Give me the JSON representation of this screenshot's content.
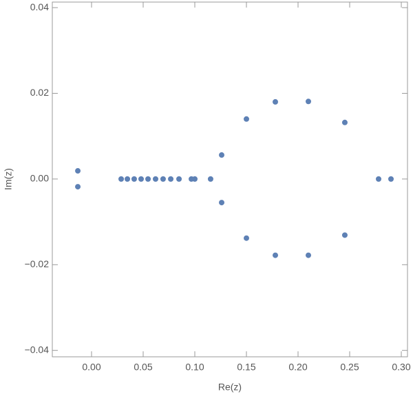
{
  "chart_data": {
    "type": "scatter",
    "x_label": "Re(z)",
    "y_label": "Im(z)",
    "color": "#5e81b5",
    "x": [
      -0.0133,
      -0.0133,
      0.0287,
      0.0347,
      0.0413,
      0.048,
      0.0547,
      0.062,
      0.0693,
      0.0767,
      0.0847,
      0.0967,
      0.1,
      0.1153,
      0.278,
      0.29,
      0.126,
      0.126,
      0.15,
      0.15,
      0.178,
      0.178,
      0.21,
      0.21,
      0.2453,
      0.2453
    ],
    "values": [
      0.0019,
      -0.0018,
      0,
      0,
      0,
      0,
      0,
      0,
      0,
      0,
      0,
      0,
      0,
      0,
      0,
      0,
      0.0056,
      -0.0055,
      0.014,
      -0.0138,
      0.018,
      -0.0178,
      0.0181,
      -0.0178,
      0.0132,
      -0.0131
    ],
    "xlim": [
      -0.038,
      0.306
    ],
    "ylim": [
      -0.0415,
      0.0413
    ],
    "xticks": [
      {
        "value": 0,
        "label": "0.00"
      },
      {
        "value": 0.05,
        "label": "0.05"
      },
      {
        "value": 0.1,
        "label": "0.10"
      },
      {
        "value": 0.15,
        "label": "0.15"
      },
      {
        "value": 0.2,
        "label": "0.20"
      },
      {
        "value": 0.25,
        "label": "0.25"
      },
      {
        "value": 0.3,
        "label": "0.30"
      }
    ],
    "yticks": [
      {
        "value": -0.04,
        "label": "−0.04"
      },
      {
        "value": -0.02,
        "label": "−0.02"
      },
      {
        "value": 0,
        "label": "0.00"
      },
      {
        "value": 0.02,
        "label": "0.02"
      },
      {
        "value": 0.04,
        "label": "0.04"
      }
    ]
  }
}
